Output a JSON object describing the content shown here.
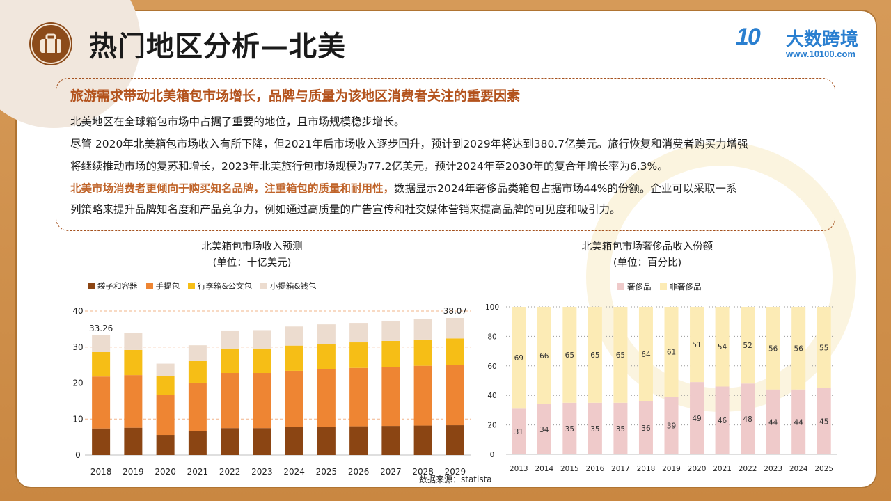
{
  "page": {
    "title": "热门地区分析—北美",
    "logo_text": "大数跨境",
    "logo_mark": "10",
    "logo_url": "www.10100.com"
  },
  "summary": {
    "heading": "旅游需求带动北美箱包市场增长，品牌与质量为该地区消费者关注的重要因素",
    "line1": "北美地区在全球箱包市场中占据了重要的地位，且市场规模稳步增长。",
    "line2": "尽管  2020年北美箱包市场收入有所下降，但2021年后市场收入逐步回升，预计到2029年将达到380.7亿美元。旅行恢复和消费者购买力增强",
    "line3": "将继续推动市场的复苏和增长，2023年北美旅行包市场规模为77.2亿美元，预计2024年至2030年的复合年增长率为6.3%。",
    "line4_em": "北美市场消费者更倾向于购买知名品牌，注重箱包的质量和耐用性，",
    "line4_rest": "数据显示2024年奢侈品类箱包占据市场44%的份额。企业可以采取一系",
    "line5": "列策略来提升品牌知名度和产品竞争力，例如通过高质量的广告宣传和社交媒体营销来提高品牌的可见度和吸引力。"
  },
  "source": "数据来源：statista",
  "colors": {
    "bags": "#8b4513",
    "handbags": "#ee8533",
    "luggage": "#f6be16",
    "small": "#ecdccf",
    "luxury": "#efcaca",
    "nonluxury": "#fcebb5"
  },
  "chart_data": [
    {
      "type": "bar",
      "stacked": true,
      "title": "北美箱包市场收入预测",
      "subtitle": "(单位：十亿美元)",
      "categories": [
        "2018",
        "2019",
        "2020",
        "2021",
        "2022",
        "2023",
        "2024",
        "2025",
        "2026",
        "2027",
        "2028",
        "2029"
      ],
      "ylim": [
        0,
        40
      ],
      "yticks": [
        0,
        10,
        20,
        30,
        40
      ],
      "grid": true,
      "legend_position": "top",
      "series": [
        {
          "name": "袋子和容器",
          "values": [
            7.4,
            7.6,
            5.6,
            6.7,
            7.5,
            7.5,
            7.8,
            7.9,
            8.0,
            8.1,
            8.2,
            8.3
          ]
        },
        {
          "name": "手提包",
          "values": [
            14.4,
            14.6,
            11.2,
            13.4,
            15.3,
            15.3,
            15.6,
            15.9,
            16.2,
            16.4,
            16.6,
            16.8
          ]
        },
        {
          "name": "行李箱&公文包",
          "values": [
            6.8,
            7.0,
            5.2,
            6.0,
            6.8,
            6.8,
            7.0,
            7.1,
            7.1,
            7.2,
            7.3,
            7.3
          ]
        },
        {
          "name": "小提箱&钱包",
          "values": [
            4.66,
            4.8,
            3.4,
            4.4,
            5.0,
            5.1,
            5.3,
            5.4,
            5.4,
            5.6,
            5.6,
            5.67
          ]
        }
      ],
      "annotations": [
        {
          "category": "2018",
          "text": "33.26"
        },
        {
          "category": "2029",
          "text": "38.07"
        }
      ]
    },
    {
      "type": "bar",
      "stacked": true,
      "title": "北美箱包市场奢侈品收入份额",
      "subtitle": "(单位：百分比)",
      "categories": [
        "2013",
        "2014",
        "2015",
        "2016",
        "2017",
        "2018",
        "2019",
        "2020",
        "2021",
        "2022",
        "2023",
        "2024",
        "2025"
      ],
      "ylim": [
        0,
        100
      ],
      "yticks": [
        0,
        20,
        40,
        60,
        80,
        100
      ],
      "grid": true,
      "legend_position": "top",
      "series": [
        {
          "name": "奢侈品",
          "values": [
            31,
            34,
            35,
            35,
            35,
            36,
            39,
            49,
            46,
            48,
            44,
            44,
            45
          ]
        },
        {
          "name": "非奢侈品",
          "values": [
            69,
            66,
            65,
            65,
            65,
            64,
            61,
            51,
            54,
            52,
            56,
            56,
            55
          ]
        }
      ]
    }
  ]
}
